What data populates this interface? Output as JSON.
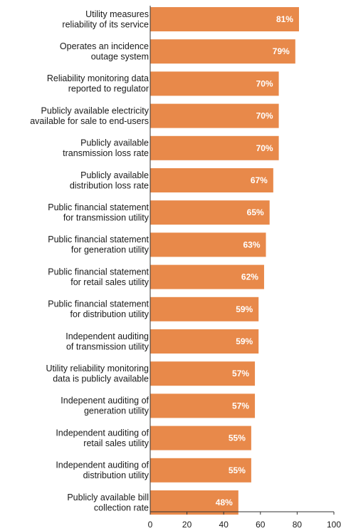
{
  "chart_data": {
    "type": "bar",
    "orientation": "horizontal",
    "categories": [
      [
        "Utility measures",
        "reliability of its service"
      ],
      [
        "Operates an incidence",
        "outage system"
      ],
      [
        "Reliability monitoring data",
        "reported to regulator"
      ],
      [
        "Publicly available electricity",
        "available for sale to end-users"
      ],
      [
        "Publicly available",
        "transmission loss rate"
      ],
      [
        "Publicly available",
        "distribution loss rate"
      ],
      [
        "Public financial statement",
        "for transmission utility"
      ],
      [
        "Public financial statement",
        "for generation utility"
      ],
      [
        "Public financial statement",
        "for retail sales utility"
      ],
      [
        "Public financial statement",
        "for distribution utility"
      ],
      [
        "Independent auditing",
        "of transmission utility"
      ],
      [
        "Utility reliability monitoring",
        "data is publicly available"
      ],
      [
        "Indepenent auditing of",
        "generation utility"
      ],
      [
        "Independent auditing of",
        "retail sales utility"
      ],
      [
        "Independent auditing of",
        "distribution utility"
      ],
      [
        "Publicly available bill",
        "collection rate"
      ]
    ],
    "values": [
      81,
      79,
      70,
      70,
      70,
      67,
      65,
      63,
      62,
      59,
      59,
      57,
      57,
      55,
      55,
      48
    ],
    "value_labels": [
      "81%",
      "79%",
      "70%",
      "70%",
      "70%",
      "67%",
      "65%",
      "63%",
      "62%",
      "59%",
      "59%",
      "57%",
      "57%",
      "55%",
      "55%",
      "48%"
    ],
    "xlim": [
      0,
      100
    ],
    "x_ticks": [
      0,
      20,
      40,
      60,
      80,
      100
    ],
    "x_tick_labels": [
      "0",
      "20",
      "40",
      "60",
      "80",
      "100"
    ],
    "bar_color": "#E8894A",
    "grid": false,
    "legend": "none"
  }
}
